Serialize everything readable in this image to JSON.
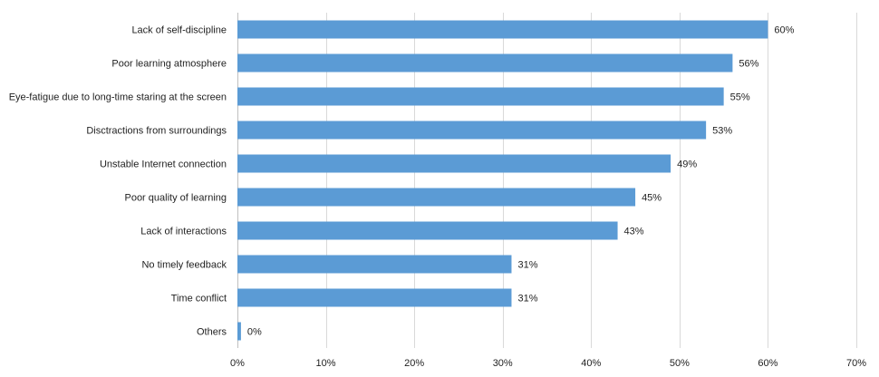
{
  "chart_data": {
    "type": "bar",
    "orientation": "horizontal",
    "title": "",
    "xlabel": "",
    "ylabel": "",
    "categories": [
      "Lack of self-discipline",
      "Poor learning atmosphere",
      "Eye-fatigue due to long-time staring at the screen",
      "Disctractions from surroundings",
      "Unstable Internet connection",
      "Poor quality of learning",
      "Lack of interactions",
      "No timely feedback",
      "Time conflict",
      "Others"
    ],
    "values": [
      60,
      56,
      55,
      53,
      49,
      45,
      43,
      31,
      31,
      0.4
    ],
    "data_labels": [
      "60%",
      "56%",
      "55%",
      "53%",
      "49%",
      "45%",
      "43%",
      "31%",
      "31%",
      "0%"
    ],
    "xlim": [
      0,
      70
    ],
    "xticks": [
      0,
      10,
      20,
      30,
      40,
      50,
      60,
      70
    ],
    "xtick_labels": [
      "0%",
      "10%",
      "20%",
      "30%",
      "40%",
      "50%",
      "60%",
      "70%"
    ],
    "grid": true,
    "legend": "none",
    "bar_color": "#5b9bd5"
  }
}
